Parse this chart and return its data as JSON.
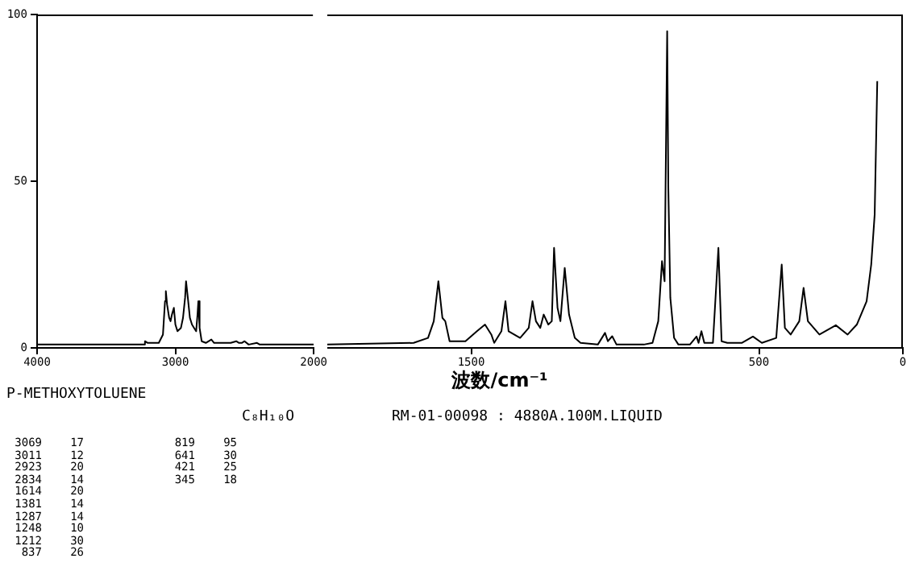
{
  "chart_data": [
    {
      "type": "line",
      "xlim": [
        4000,
        2000
      ],
      "xticks": [
        4000,
        3000,
        2000
      ],
      "ylim": [
        0,
        100
      ],
      "yticks": [
        0,
        50,
        100
      ],
      "grid": false,
      "legend": false,
      "marker": "none",
      "line_style": "solid",
      "series": [
        {
          "color": "#000000",
          "x": [
            4000,
            3300,
            3230,
            3220,
            3200,
            3120,
            3090,
            3075,
            3069,
            3060,
            3045,
            3035,
            3025,
            3011,
            3000,
            2985,
            2960,
            2945,
            2930,
            2923,
            2910,
            2895,
            2880,
            2865,
            2850,
            2840,
            2834,
            2825,
            2810,
            2780,
            2740,
            2720,
            2600,
            2560,
            2540,
            2520,
            2500,
            2470,
            2410,
            2390,
            2000
          ],
          "values": [
            1,
            1,
            1,
            2,
            1.5,
            1.5,
            4,
            14,
            17,
            13,
            9,
            8,
            10,
            12,
            7,
            5,
            6,
            9,
            15,
            20,
            15,
            9,
            7,
            6,
            5,
            10,
            14,
            6,
            2,
            1.5,
            2.5,
            1.5,
            1.5,
            2,
            1.5,
            1.5,
            2,
            1,
            1.5,
            1,
            1
          ]
        }
      ]
    },
    {
      "type": "line",
      "xlabel": "波数/cm⁻¹",
      "xlim": [
        2000,
        0
      ],
      "xticks": [
        1500,
        500,
        0
      ],
      "ylim": [
        0,
        100
      ],
      "tick_labels": "x",
      "grid": false,
      "legend": false,
      "marker": "none",
      "line_style": "solid",
      "series": [
        {
          "color": "#000000",
          "x": [
            2000,
            1700,
            1650,
            1630,
            1614,
            1600,
            1590,
            1575,
            1520,
            1480,
            1452,
            1430,
            1420,
            1395,
            1381,
            1370,
            1330,
            1300,
            1287,
            1275,
            1260,
            1248,
            1232,
            1220,
            1212,
            1200,
            1190,
            1175,
            1160,
            1140,
            1120,
            1060,
            1035,
            1025,
            1010,
            995,
            900,
            870,
            850,
            837,
            828,
            819,
            815,
            808,
            795,
            780,
            740,
            717,
            710,
            700,
            690,
            660,
            641,
            630,
            610,
            560,
            521,
            490,
            440,
            421,
            410,
            390,
            360,
            345,
            330,
            290,
            233,
            192,
            160,
            126,
            110,
            98,
            89
          ],
          "values": [
            1,
            1.5,
            3,
            8,
            20,
            9,
            8,
            2,
            2,
            5,
            7,
            4,
            1.5,
            5,
            14,
            5,
            3,
            6,
            14,
            8,
            6,
            10,
            7,
            8,
            30,
            12,
            8,
            24,
            10,
            3,
            1.5,
            1,
            4.5,
            2,
            3.5,
            1,
            1,
            1.5,
            8,
            26,
            20,
            95,
            48,
            15,
            3,
            1,
            1,
            3.4,
            1.5,
            5,
            1.5,
            1.5,
            30,
            2,
            1.5,
            1.5,
            3.4,
            1.5,
            3,
            25,
            6,
            4,
            8,
            18,
            8,
            4,
            6.8,
            4,
            7,
            14,
            25,
            40,
            80
          ]
        }
      ],
      "annotations": [
        "P-METHOXYTOLUENE",
        "C₈H₁₀O",
        "RM-01-00098 : 4880A.100M.LIQUID",
        "3069 17",
        "3011 12",
        "2923 20",
        "2834 14",
        "1614 20",
        "1381 14",
        "1287 14",
        "1248 10",
        "1212 30",
        "837 26",
        "819 95",
        "641 30",
        "421 25",
        "345 18"
      ]
    }
  ]
}
